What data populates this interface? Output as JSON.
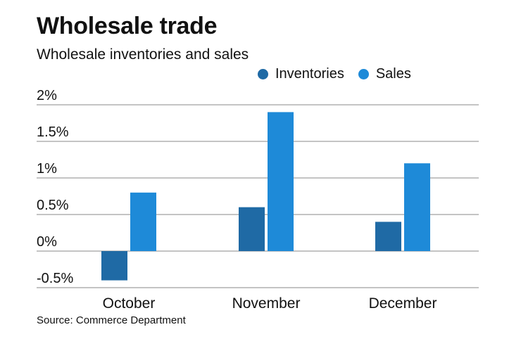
{
  "header": {
    "title": "Wholesale trade",
    "subtitle": "Wholesale inventories and sales"
  },
  "footer": {
    "source": "Source: Commerce Department"
  },
  "colors": {
    "inventories": "#1f6aa5",
    "sales": "#1e8ad8",
    "gridline": "#888888"
  },
  "chart_data": {
    "type": "bar",
    "categories": [
      "October",
      "November",
      "December"
    ],
    "series": [
      {
        "name": "Inventories",
        "values": [
          -0.4,
          0.6,
          0.4
        ]
      },
      {
        "name": "Sales",
        "values": [
          0.8,
          1.9,
          1.2
        ]
      }
    ],
    "yticks": [
      -0.5,
      0,
      0.5,
      1,
      1.5,
      2
    ],
    "ytick_labels": [
      "-0.5%",
      "0%",
      "0.5%",
      "1%",
      "1.5%",
      "2%"
    ],
    "ylim": [
      -0.5,
      2
    ],
    "grid": true,
    "legend_position": "top-right"
  }
}
